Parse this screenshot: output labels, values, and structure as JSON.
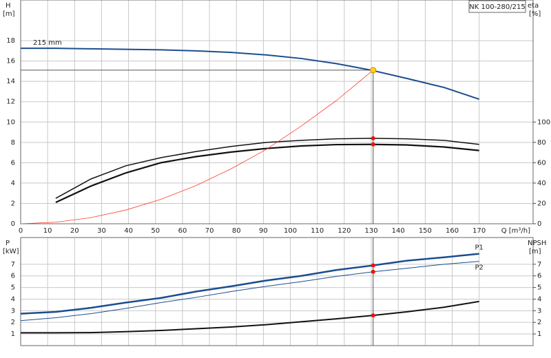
{
  "chart_data": [
    {
      "type": "line",
      "model": "NK 100-280/215",
      "y_label": "H",
      "y_unit": "[m]",
      "y2_label": "eta",
      "y2_unit": "[%]",
      "x_label": "Q [m³/h]",
      "xlim": [
        0,
        190
      ],
      "xticks": [
        0,
        10,
        20,
        30,
        40,
        50,
        60,
        70,
        80,
        90,
        100,
        110,
        120,
        130,
        140,
        150,
        160,
        170
      ],
      "ylim": [
        0,
        22
      ],
      "yticks": [
        0,
        2,
        4,
        6,
        8,
        10,
        12,
        14,
        16,
        18
      ],
      "y2lim": [
        0,
        220
      ],
      "y2ticks": [
        0,
        20,
        40,
        60,
        80,
        100
      ],
      "grid": true,
      "series": [
        {
          "name": "215 mm",
          "color": "#1a4d8f",
          "width": 2,
          "x": [
            0,
            13,
            26,
            39,
            52,
            65,
            78,
            91,
            104,
            117,
            130,
            143,
            157,
            170
          ],
          "values": [
            17.25,
            17.25,
            17.2,
            17.15,
            17.1,
            17.0,
            16.85,
            16.6,
            16.25,
            15.75,
            15.1,
            14.3,
            13.4,
            12.25
          ]
        },
        {
          "color": "#111111",
          "width": 1.5,
          "axis": "y2",
          "x": [
            13,
            26,
            39,
            52,
            65,
            78,
            91,
            104,
            117,
            130,
            143,
            157,
            170
          ],
          "values": [
            25,
            44,
            57,
            65,
            71,
            76,
            80,
            82,
            83.5,
            84,
            83.5,
            82,
            78
          ]
        },
        {
          "color": "#111111",
          "width": 2.2,
          "axis": "y2",
          "x": [
            13,
            26,
            39,
            52,
            65,
            78,
            91,
            104,
            117,
            130,
            143,
            157,
            170
          ],
          "values": [
            21,
            37,
            50,
            60,
            66,
            70.5,
            74,
            76.5,
            77.8,
            78,
            77.5,
            75.5,
            72
          ]
        },
        {
          "color": "#ff3b30",
          "width": 0.8,
          "x": [
            0,
            13,
            26,
            39,
            52,
            65,
            78,
            91,
            104,
            117,
            130.7
          ],
          "values": [
            0,
            0.15,
            0.6,
            1.35,
            2.4,
            3.75,
            5.4,
            7.3,
            9.6,
            12.1,
            15.1
          ]
        }
      ],
      "points": [
        {
          "x": 130.7,
          "y": 15.1,
          "color": "#ffd21f",
          "duty": true
        },
        {
          "x": 130.7,
          "y": 84,
          "color": "#ee1111",
          "axis": "y2"
        },
        {
          "x": 130.7,
          "y": 78,
          "color": "#ee1111",
          "axis": "y2"
        }
      ]
    },
    {
      "type": "line",
      "y_label": "P",
      "y_unit": "[kW]",
      "y2_label": "NPSH",
      "y2_unit": "[m]",
      "xlim": [
        0,
        190
      ],
      "xticks": [
        0,
        10,
        20,
        30,
        40,
        50,
        60,
        70,
        80,
        90,
        100,
        110,
        120,
        130,
        140,
        150,
        160,
        170
      ],
      "ylim": [
        0,
        9.3
      ],
      "yticks": [
        1,
        2,
        3,
        4,
        5,
        6,
        7
      ],
      "y2lim": [
        0,
        9.3
      ],
      "y2ticks": [
        1,
        2,
        3,
        4,
        5,
        6,
        7
      ],
      "grid": true,
      "series": [
        {
          "name": "P1",
          "color": "#1a4d8f",
          "width": 2.5,
          "x": [
            0,
            13,
            26,
            39,
            52,
            65,
            78,
            91,
            104,
            117,
            130.7,
            143,
            157,
            170
          ],
          "values": [
            2.75,
            2.9,
            3.25,
            3.7,
            4.1,
            4.65,
            5.1,
            5.6,
            6.0,
            6.5,
            6.9,
            7.3,
            7.6,
            7.9
          ]
        },
        {
          "name": "P2",
          "color": "#1a4d8f",
          "width": 1,
          "x": [
            0,
            13,
            26,
            39,
            52,
            65,
            78,
            91,
            104,
            117,
            130.7,
            143,
            157,
            170
          ],
          "values": [
            2.15,
            2.4,
            2.75,
            3.2,
            3.7,
            4.15,
            4.65,
            5.1,
            5.5,
            5.95,
            6.35,
            6.65,
            7.0,
            7.25
          ]
        },
        {
          "color": "#111111",
          "width": 2,
          "axis": "y2",
          "x": [
            0,
            13,
            26,
            39,
            52,
            65,
            78,
            91,
            104,
            117,
            130.7,
            143,
            157,
            170
          ],
          "values": [
            1.1,
            1.1,
            1.12,
            1.2,
            1.3,
            1.45,
            1.6,
            1.8,
            2.05,
            2.3,
            2.6,
            2.9,
            3.3,
            3.8
          ]
        }
      ],
      "points": [
        {
          "x": 130.7,
          "y": 6.9,
          "color": "#ee1111"
        },
        {
          "x": 130.7,
          "y": 6.35,
          "color": "#ee1111"
        },
        {
          "x": 130.7,
          "y": 2.6,
          "color": "#ee1111",
          "axis": "y2",
          "duty": true
        }
      ]
    }
  ]
}
